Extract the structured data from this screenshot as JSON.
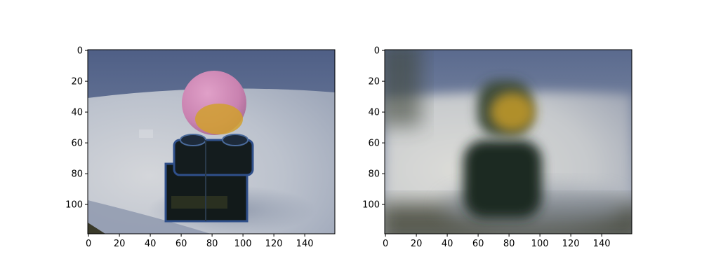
{
  "figure": {
    "background": "#ffffff",
    "panels": [
      {
        "name": "original",
        "image": {
          "palette": {
            "wall_top": "#4f5f86",
            "wall_mid": "#7f8fa9",
            "table_light": "#c9ccd5",
            "table_mid": "#b7bdc9",
            "shadow": "#7f8aa0",
            "block_dark": "#121a1a",
            "block_edge": "#2f4f8a",
            "block_highlight": "#6b7f9b",
            "ball_pink": "#d88ab8",
            "ball_yellow": "#d1a02e",
            "corner_dark": "#3a3a2a"
          }
        },
        "x_ticks": [
          "0",
          "20",
          "40",
          "60",
          "80",
          "100",
          "120",
          "140"
        ],
        "y_ticks": [
          "0",
          "20",
          "40",
          "60",
          "80",
          "100"
        ]
      },
      {
        "name": "blurred",
        "image": {
          "palette": {
            "wall_top": "#56668b",
            "wall_mid": "#9aa2b3",
            "table_light": "#d6d8d8",
            "table_mid": "#bfc3c7",
            "shadow": "#8a93a1",
            "block_dark": "#1d2a22",
            "block_edge": "#3a4a4a",
            "ball_yellow": "#b08f2a",
            "corner_dark": "#3d3f32"
          }
        },
        "x_ticks": [
          "0",
          "20",
          "40",
          "60",
          "80",
          "100",
          "120",
          "140"
        ],
        "y_ticks": [
          "0",
          "20",
          "40",
          "60",
          "80",
          "100"
        ]
      }
    ]
  }
}
